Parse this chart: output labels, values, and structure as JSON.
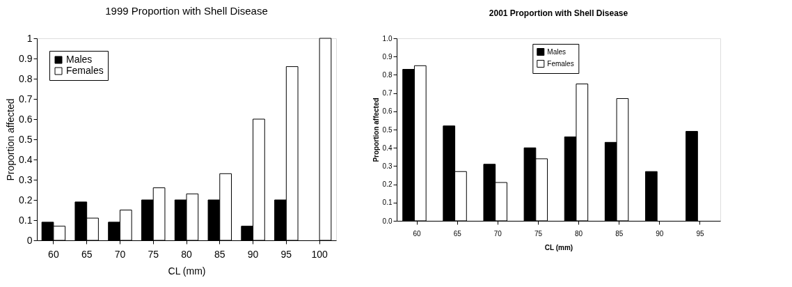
{
  "chart_data": [
    {
      "type": "bar",
      "title": "1999 Proportion with Shell Disease",
      "xlabel": "CL (mm)",
      "ylabel": "Proportion affected",
      "categories": [
        "60",
        "65",
        "70",
        "75",
        "80",
        "85",
        "90",
        "95",
        "100"
      ],
      "series": [
        {
          "name": "Males",
          "color": "#000000",
          "values": [
            0.09,
            0.19,
            0.09,
            0.2,
            0.2,
            0.2,
            0.07,
            0.2,
            null
          ]
        },
        {
          "name": "Females",
          "color": "#ffffff",
          "values": [
            0.07,
            0.11,
            0.15,
            0.26,
            0.23,
            0.33,
            0.6,
            0.86,
            1.0
          ]
        }
      ],
      "ylim": [
        0,
        1
      ],
      "yticks": [
        0,
        0.1,
        0.2,
        0.3,
        0.4,
        0.5,
        0.6,
        0.7,
        0.8,
        0.9,
        1
      ],
      "grid": false,
      "legend": "top left"
    },
    {
      "type": "bar",
      "title": "2001 Proportion with Shell Disease",
      "xlabel": "CL (mm)",
      "ylabel": "Proportion affected",
      "categories": [
        "60",
        "65",
        "70",
        "75",
        "80",
        "85",
        "90",
        "95"
      ],
      "series": [
        {
          "name": "Males",
          "color": "#000000",
          "values": [
            0.83,
            0.52,
            0.31,
            0.4,
            0.46,
            0.43,
            0.27,
            0.49
          ]
        },
        {
          "name": "Females",
          "color": "#ffffff",
          "values": [
            0.85,
            0.27,
            0.21,
            0.34,
            0.75,
            0.67,
            null,
            null
          ]
        }
      ],
      "ylim": [
        0,
        1
      ],
      "yticks": [
        {
          "value": 0,
          "label": "0.0"
        },
        0.1,
        0.2,
        0.3,
        0.4,
        0.5,
        0.6,
        0.7,
        0.8,
        0.9,
        {
          "value": 1,
          "label": "1.0"
        }
      ],
      "grid": false,
      "legend": "top"
    }
  ]
}
